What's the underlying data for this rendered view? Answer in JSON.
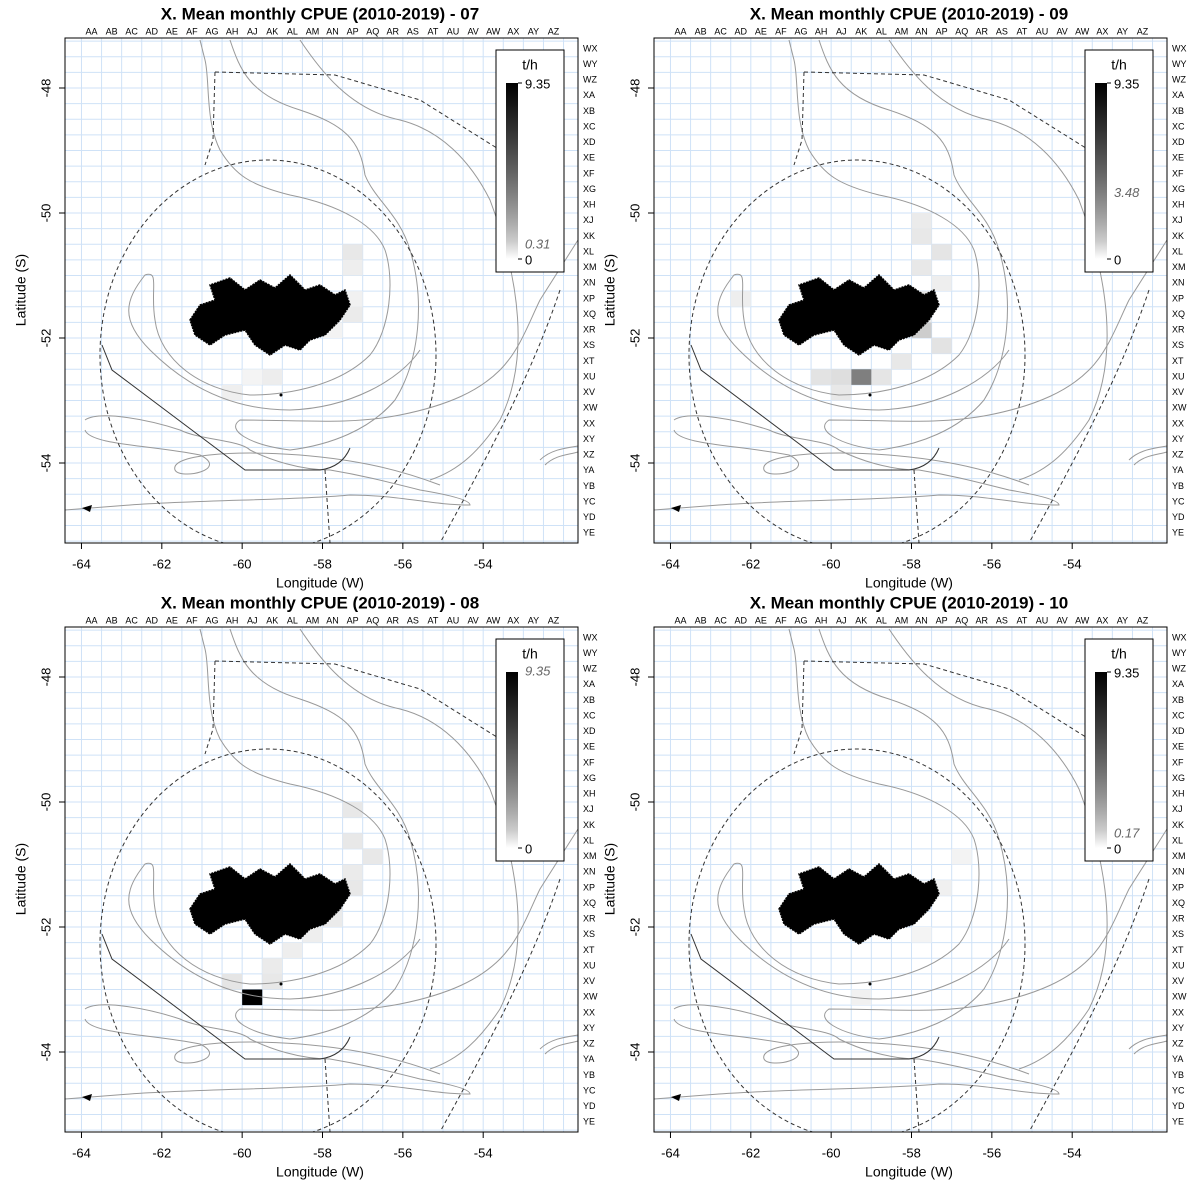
{
  "chart_data": [
    {
      "type": "heatmap",
      "title": "X. Mean monthly CPUE (2010-2019) - 07",
      "xlabel": "Longitude (W)",
      "ylabel": "Latitude (S)",
      "xlim": [
        -64.41,
        -51.64
      ],
      "ylim": [
        -55.28,
        -47.2
      ],
      "xticks": [
        -64,
        -62,
        -60,
        -58,
        -56,
        -54
      ],
      "yticks": [
        -54,
        -52,
        -50,
        -48
      ],
      "column_labels": [
        "AA",
        "AB",
        "AC",
        "AD",
        "AE",
        "AF",
        "AG",
        "AH",
        "AJ",
        "AK",
        "AL",
        "AM",
        "AN",
        "AP",
        "AQ",
        "AR",
        "AS",
        "AT",
        "AU",
        "AV",
        "AW",
        "AX",
        "AY",
        "AZ"
      ],
      "row_labels": [
        "WX",
        "WY",
        "WZ",
        "XA",
        "XB",
        "XC",
        "XD",
        "XE",
        "XF",
        "XG",
        "XH",
        "XJ",
        "XK",
        "XL",
        "XM",
        "XN",
        "XP",
        "XQ",
        "XR",
        "XS",
        "XT",
        "XU",
        "XV",
        "XW",
        "XX",
        "XY",
        "XZ",
        "YA",
        "YB",
        "YC",
        "YD",
        "YE"
      ],
      "legend_title": "t/h",
      "colorbar_lim": [
        0,
        9.35
      ],
      "colorbar_ticks": [
        0,
        9.35
      ],
      "colorbar_highlight": 0.31,
      "cells": {
        "x": [
          -57.25,
          -57.25,
          -57.25,
          -57.25,
          -57.75,
          -60.25,
          -59.75,
          -59.25
        ],
        "y": [
          -50.625,
          -50.875,
          -51.375,
          -51.625,
          -51.875,
          -52.875,
          -52.625,
          -52.625
        ],
        "values": [
          0.31,
          0.2,
          0.15,
          0.25,
          0.12,
          0.18,
          0.1,
          0.22
        ]
      }
    },
    {
      "type": "heatmap",
      "title": "X. Mean monthly CPUE (2010-2019) - 09",
      "xlabel": "Longitude (W)",
      "ylabel": "Latitude (S)",
      "xlim": [
        -64.41,
        -51.64
      ],
      "ylim": [
        -55.28,
        -47.2
      ],
      "xticks": [
        -64,
        -62,
        -60,
        -58,
        -56,
        -54
      ],
      "yticks": [
        -54,
        -52,
        -50,
        -48
      ],
      "column_labels": [
        "AA",
        "AB",
        "AC",
        "AD",
        "AE",
        "AF",
        "AG",
        "AH",
        "AJ",
        "AK",
        "AL",
        "AM",
        "AN",
        "AP",
        "AQ",
        "AR",
        "AS",
        "AT",
        "AU",
        "AV",
        "AW",
        "AX",
        "AY",
        "AZ"
      ],
      "row_labels": [
        "WX",
        "WY",
        "WZ",
        "XA",
        "XB",
        "XC",
        "XD",
        "XE",
        "XF",
        "XG",
        "XH",
        "XJ",
        "XK",
        "XL",
        "XM",
        "XN",
        "XP",
        "XQ",
        "XR",
        "XS",
        "XT",
        "XU",
        "XV",
        "XW",
        "XX",
        "XY",
        "XZ",
        "YA",
        "YB",
        "YC",
        "YD",
        "YE"
      ],
      "legend_title": "t/h",
      "colorbar_lim": [
        0,
        9.35
      ],
      "colorbar_ticks": [
        0,
        9.35
      ],
      "colorbar_highlight": 3.48,
      "cells": {
        "x": [
          -57.75,
          -57.75,
          -57.25,
          -57.75,
          -57.25,
          -57.75,
          -57.75,
          -57.75,
          -57.25,
          -58.25,
          -58.75,
          -59.25,
          -59.75,
          -60.25,
          -59.75,
          -62.25
        ],
        "y": [
          -50.125,
          -50.375,
          -50.625,
          -50.875,
          -51.125,
          -51.375,
          -51.625,
          -51.875,
          -52.125,
          -52.375,
          -52.625,
          -52.625,
          -52.625,
          -52.625,
          -52.875,
          -51.375
        ],
        "values": [
          0.25,
          0.3,
          0.35,
          0.3,
          0.2,
          0.3,
          0.25,
          0.9,
          0.4,
          0.3,
          0.35,
          3.48,
          0.5,
          0.4,
          0.3,
          0.2
        ]
      }
    },
    {
      "type": "heatmap",
      "title": "X. Mean monthly CPUE (2010-2019) - 08",
      "xlabel": "Longitude (W)",
      "ylabel": "Latitude (S)",
      "xlim": [
        -64.41,
        -51.64
      ],
      "ylim": [
        -55.28,
        -47.2
      ],
      "xticks": [
        -64,
        -62,
        -60,
        -58,
        -56,
        -54
      ],
      "yticks": [
        -54,
        -52,
        -50,
        -48
      ],
      "column_labels": [
        "AA",
        "AB",
        "AC",
        "AD",
        "AE",
        "AF",
        "AG",
        "AH",
        "AJ",
        "AK",
        "AL",
        "AM",
        "AN",
        "AP",
        "AQ",
        "AR",
        "AS",
        "AT",
        "AU",
        "AV",
        "AW",
        "AX",
        "AY",
        "AZ"
      ],
      "row_labels": [
        "WX",
        "WY",
        "WZ",
        "XA",
        "XB",
        "XC",
        "XD",
        "XE",
        "XF",
        "XG",
        "XH",
        "XJ",
        "XK",
        "XL",
        "XM",
        "XN",
        "XP",
        "XQ",
        "XR",
        "XS",
        "XT",
        "XU",
        "XV",
        "XW",
        "XX",
        "XY",
        "XZ",
        "YA",
        "YB",
        "YC",
        "YD",
        "YE"
      ],
      "legend_title": "t/h",
      "colorbar_lim": [
        0,
        9.35
      ],
      "colorbar_ticks": [
        0
      ],
      "colorbar_highlight": 9.35,
      "cells": {
        "x": [
          -57.25,
          -57.25,
          -56.75,
          -57.25,
          -57.25,
          -57.75,
          -57.75,
          -58.25,
          -58.75,
          -59.25,
          -60.25,
          -59.75,
          -59.25
        ],
        "y": [
          -50.125,
          -50.625,
          -50.875,
          -51.125,
          -51.375,
          -51.625,
          -51.875,
          -52.125,
          -52.375,
          -52.875,
          -52.875,
          -53.125,
          -52.625
        ],
        "values": [
          0.3,
          0.3,
          0.3,
          0.25,
          0.3,
          0.3,
          0.25,
          0.2,
          0.2,
          0.3,
          0.35,
          9.35,
          0.25
        ]
      }
    },
    {
      "type": "heatmap",
      "title": "X. Mean monthly CPUE (2010-2019) - 10",
      "xlabel": "Longitude (W)",
      "ylabel": "Latitude (S)",
      "xlim": [
        -64.41,
        -51.64
      ],
      "ylim": [
        -55.28,
        -47.2
      ],
      "xticks": [
        -64,
        -62,
        -60,
        -58,
        -56,
        -54
      ],
      "yticks": [
        -54,
        -52,
        -50,
        -48
      ],
      "column_labels": [
        "AA",
        "AB",
        "AC",
        "AD",
        "AE",
        "AF",
        "AG",
        "AH",
        "AJ",
        "AK",
        "AL",
        "AM",
        "AN",
        "AP",
        "AQ",
        "AR",
        "AS",
        "AT",
        "AU",
        "AV",
        "AW",
        "AX",
        "AY",
        "AZ"
      ],
      "row_labels": [
        "WX",
        "WY",
        "WZ",
        "XA",
        "XB",
        "XC",
        "XD",
        "XE",
        "XF",
        "XG",
        "XH",
        "XJ",
        "XK",
        "XL",
        "XM",
        "XN",
        "XP",
        "XQ",
        "XR",
        "XS",
        "XT",
        "XU",
        "XV",
        "XW",
        "XX",
        "XY",
        "XZ",
        "YA",
        "YB",
        "YC",
        "YD",
        "YE"
      ],
      "legend_title": "t/h",
      "colorbar_lim": [
        0,
        9.35
      ],
      "colorbar_ticks": [
        0,
        9.35
      ],
      "colorbar_highlight": 0.17,
      "cells": {
        "x": [
          -56.75,
          -57.25,
          -57.75,
          -59.25
        ],
        "y": [
          -50.875,
          -51.375,
          -52.125,
          -53.125
        ],
        "values": [
          0.12,
          0.17,
          0.1,
          0.15
        ]
      }
    }
  ]
}
